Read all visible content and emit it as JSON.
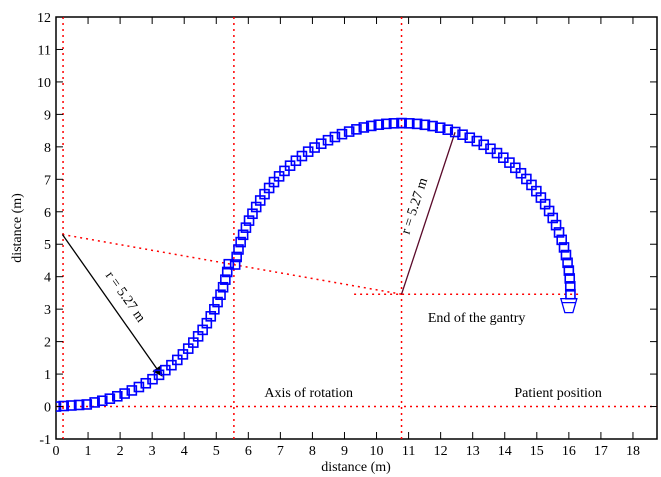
{
  "chart_data": {
    "type": "scatter",
    "title": "",
    "xlabel": "distance (m)",
    "ylabel": "distance (m)",
    "xlim": [
      0,
      18.75
    ],
    "ylim": [
      -1,
      12
    ],
    "xticks": [
      "0",
      "1",
      "2",
      "3",
      "4",
      "5",
      "6",
      "7",
      "8",
      "9",
      "10",
      "11",
      "12",
      "13",
      "14",
      "15",
      "16",
      "17",
      "18"
    ],
    "yticks": [
      "-1",
      "0",
      "1",
      "2",
      "3",
      "4",
      "5",
      "6",
      "7",
      "8",
      "9",
      "10",
      "11",
      "12"
    ],
    "grid": false,
    "colors": {
      "marker": "#0000ff",
      "guides": "#ff0000",
      "radius_left": "#000000",
      "radius_right": "#5a0a2a"
    },
    "series": [
      {
        "path": [
          {
            "type": "line",
            "from": [
              0,
              0
            ],
            "to": [
              1.2,
              0.08
            ]
          },
          {
            "type": "arc",
            "center": [
              0.2,
              5.3
            ],
            "radius": 5.27,
            "start_deg": -79,
            "end_deg": -10
          },
          {
            "type": "arc",
            "center": [
              10.78,
              3.46
            ],
            "radius": 5.27,
            "start_deg": 170,
            "end_deg": 90
          },
          {
            "type": "arc",
            "center": [
              10.78,
              3.46
            ],
            "radius": 5.27,
            "start_deg": 90,
            "end_deg": 0
          }
        ],
        "spacing": 0.24
      }
    ],
    "guides": {
      "vertical_x": [
        0.22,
        5.55,
        10.78
      ],
      "horizontal_y": [
        0,
        3.46
      ],
      "horizontal_right_from_x": 9.3,
      "slanted_from": [
        0.2,
        5.3
      ],
      "slanted_to": [
        10.78,
        3.46
      ]
    },
    "radii": [
      {
        "label": "r = 5.27 m",
        "from": [
          0.2,
          5.3
        ],
        "to": [
          3.3,
          0.95
        ]
      },
      {
        "label": "r = 5.27 m",
        "from": [
          10.78,
          3.46
        ],
        "to": [
          12.45,
          8.45
        ]
      }
    ],
    "annotations": [
      {
        "text": "Axis of rotation",
        "x": 6.5,
        "y": 0.3
      },
      {
        "text": "Patient position",
        "x": 14.3,
        "y": 0.3
      },
      {
        "text": "End of the gantry",
        "x": 11.6,
        "y": 2.6
      }
    ]
  }
}
